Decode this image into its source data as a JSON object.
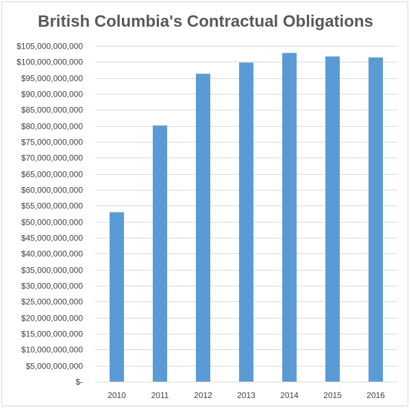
{
  "chart_data": {
    "type": "bar",
    "title": "British Columbia's Contractual Obligations",
    "xlabel": "",
    "ylabel": "",
    "categories": [
      "2010",
      "2011",
      "2012",
      "2013",
      "2014",
      "2015",
      "2016"
    ],
    "values": [
      53000000000,
      80100000000,
      96300000000,
      99800000000,
      102800000000,
      101700000000,
      101400000000
    ],
    "ylim": [
      0,
      105000000000
    ],
    "y_ticks": [
      "$-",
      "$5,000,000,000",
      "$10,000,000,000",
      "$15,000,000,000",
      "$20,000,000,000",
      "$25,000,000,000",
      "$30,000,000,000",
      "$35,000,000,000",
      "$40,000,000,000",
      "$45,000,000,000",
      "$50,000,000,000",
      "$55,000,000,000",
      "$60,000,000,000",
      "$65,000,000,000",
      "$70,000,000,000",
      "$75,000,000,000",
      "$80,000,000,000",
      "$85,000,000,000",
      "$90,000,000,000",
      "$95,000,000,000",
      "$100,000,000,000",
      "$105,000,000,000"
    ],
    "y_tick_values": [
      0,
      5000000000,
      10000000000,
      15000000000,
      20000000000,
      25000000000,
      30000000000,
      35000000000,
      40000000000,
      45000000000,
      50000000000,
      55000000000,
      60000000000,
      65000000000,
      70000000000,
      75000000000,
      80000000000,
      85000000000,
      90000000000,
      95000000000,
      100000000000,
      105000000000
    ],
    "grid": true,
    "legend": "none",
    "bar_color": "#5b9bd5",
    "gridline_color": "#d9d9d9"
  }
}
